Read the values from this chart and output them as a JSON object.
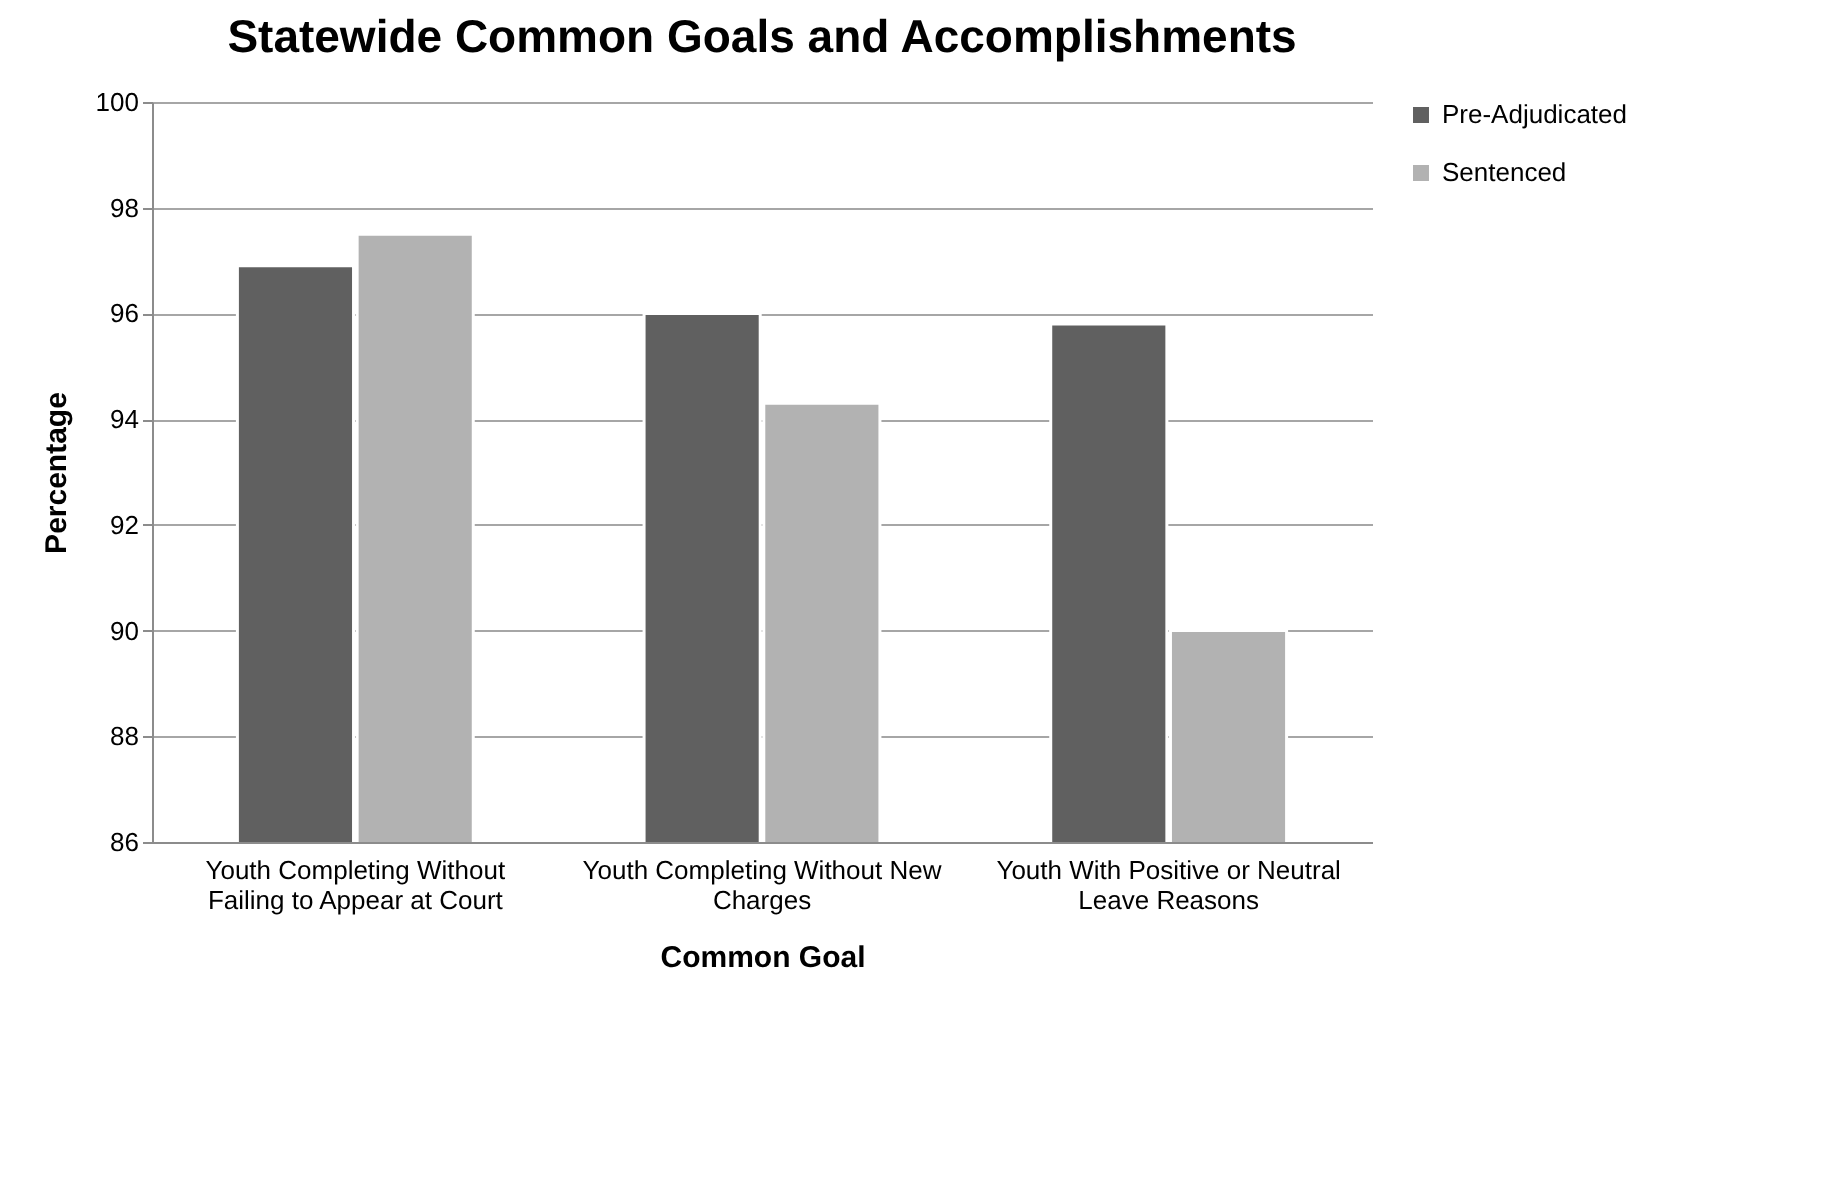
{
  "chart_data": {
    "type": "bar",
    "title": "Statewide Common Goals and Accomplishments",
    "xlabel": "Common Goal",
    "ylabel": "Percentage",
    "categories": [
      "Youth Completing Without Failing to Appear at Court",
      "Youth Completing Without New Charges",
      "Youth With Positive or Neutral Leave Reasons"
    ],
    "series": [
      {
        "name": "Pre-Adjudicated",
        "color": "#606060",
        "values": [
          96.9,
          96.0,
          95.8
        ]
      },
      {
        "name": "Sentenced",
        "color": "#b2b2b2",
        "values": [
          97.5,
          94.3,
          90.0
        ]
      }
    ],
    "ylim": [
      86,
      100
    ],
    "yticks": [
      86,
      88,
      90,
      92,
      94,
      96,
      98,
      100
    ],
    "grid": "y",
    "legend": "right"
  }
}
